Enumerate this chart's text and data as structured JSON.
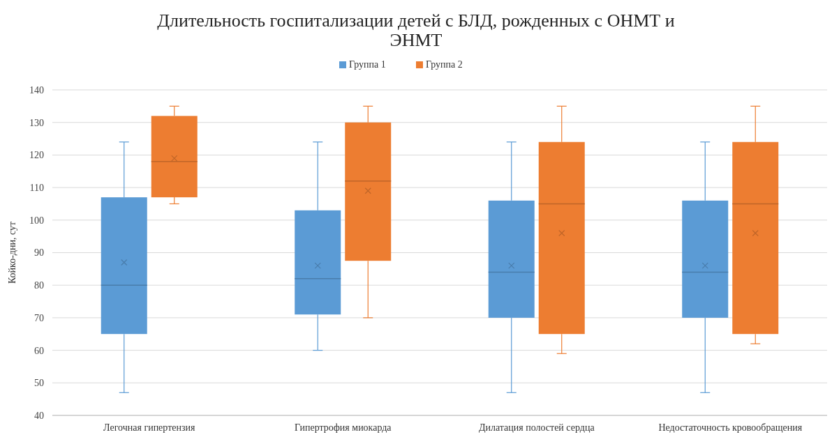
{
  "chart_data": {
    "type": "box",
    "title": "Длительность госпитализации детей с БЛД, рожденных с ОНМТ и ЭНМТ",
    "ylabel": "Койко-дни, сут",
    "categories": [
      "Легочная гипертензия",
      "Гипертрофия миокарда",
      "Дилатация полостей сердца",
      "Недостаточность кровообращения"
    ],
    "series": [
      {
        "name": "Группа 1",
        "color": "#5b9bd5",
        "boxes": [
          {
            "low": 47,
            "q1": 65,
            "median": 80,
            "q3": 107,
            "high": 124,
            "mean": 87
          },
          {
            "low": 60,
            "q1": 71,
            "median": 82,
            "q3": 103,
            "high": 124,
            "mean": 86
          },
          {
            "low": 47,
            "q1": 70,
            "median": 84,
            "q3": 106,
            "high": 124,
            "mean": 86
          },
          {
            "low": 47,
            "q1": 70,
            "median": 84,
            "q3": 106,
            "high": 124,
            "mean": 86
          }
        ]
      },
      {
        "name": "Группа 2",
        "color": "#ed7d31",
        "boxes": [
          {
            "low": 105,
            "q1": 107,
            "median": 118,
            "q3": 132,
            "high": 135,
            "mean": 119
          },
          {
            "low": 70,
            "q1": 87.5,
            "median": 112,
            "q3": 130,
            "high": 135,
            "mean": 109
          },
          {
            "low": 59,
            "q1": 65,
            "median": 105,
            "q3": 124,
            "high": 135,
            "mean": 96
          },
          {
            "low": 62,
            "q1": 65,
            "median": 105,
            "q3": 124,
            "high": 135,
            "mean": 96
          }
        ]
      }
    ],
    "ylim": [
      40,
      140
    ],
    "yticks": [
      40,
      50,
      60,
      70,
      80,
      90,
      100,
      110,
      120,
      130,
      140
    ],
    "grid": "y",
    "legend": "top",
    "marker": "cross"
  }
}
